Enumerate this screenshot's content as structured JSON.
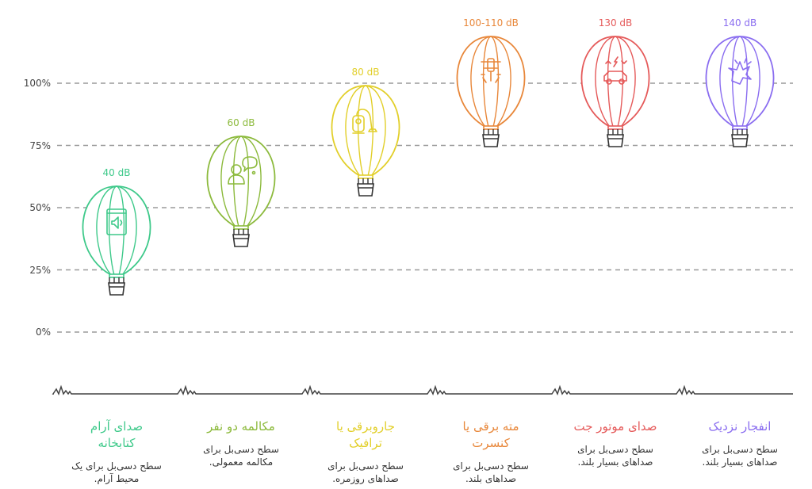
{
  "chart_data": {
    "type": "bar",
    "title": "",
    "xlabel": "",
    "ylabel": "",
    "ylim": [
      0,
      100
    ],
    "yticks": [
      "0%",
      "25%",
      "50%",
      "75%",
      "100%"
    ],
    "grid": true,
    "categories": [
      {
        "title": "صدای آرام کتابخانه",
        "description": "سطح دسی‌بل برای یک محیط آرام.",
        "value": 40,
        "label": "40 dB",
        "color": "#3ec98a",
        "icon": "speaker-book-icon"
      },
      {
        "title": "مکالمه دو نفر",
        "description": "سطح دسی‌بل برای مکالمه معمولی.",
        "value": 60,
        "label": "60 dB",
        "color": "#8cba3c",
        "icon": "people-talking-icon"
      },
      {
        "title": "جاروبرقی یا ترافیک",
        "description": "سطح دسی‌بل برای صداهای روزمره.",
        "value": 80,
        "label": "80 dB",
        "color": "#e2cf2a",
        "icon": "vacuum-cleaner-icon"
      },
      {
        "title": "مته برقی یا کنسرت",
        "description": "سطح دسی‌بل برای صداهای بلند.",
        "value": 105,
        "label": "100-110 dB",
        "color": "#e8873a",
        "icon": "power-drill-icon"
      },
      {
        "title": "صدای موتور جت",
        "description": "سطح دسی‌بل برای صداهای بسیار بلند.",
        "value": 130,
        "label": "130 dB",
        "color": "#e55a5a",
        "icon": "jet-engine-car-icon"
      },
      {
        "title": "انفجار نزدیک",
        "description": "سطح دسی‌بل برای صداهای بسیار بلند.",
        "value": 140,
        "label": "140 dB",
        "color": "#8a6df0",
        "icon": "explosion-icon"
      }
    ]
  }
}
